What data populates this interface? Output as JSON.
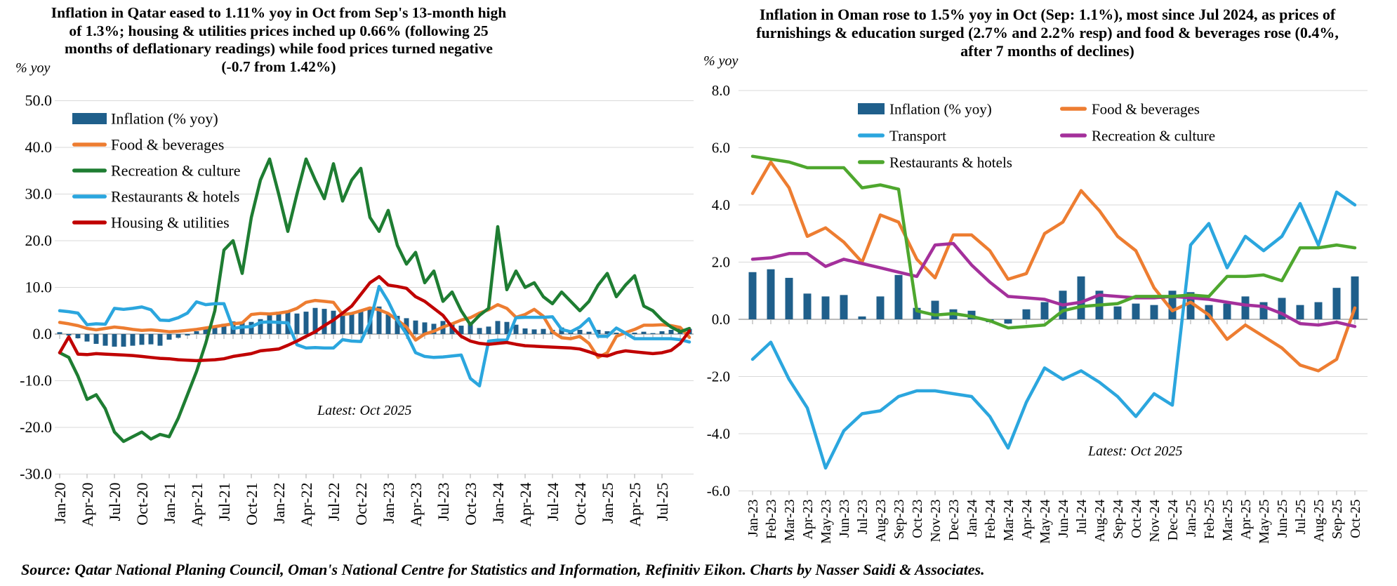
{
  "source_note": "Source: Qatar National Planing Council, Oman's National Centre for Statistics and Information, Refinitiv Eikon. Charts by Nasser Saidi & Associates.",
  "chart_data": [
    {
      "id": "qatar",
      "type": "combo_bar_line",
      "title": "Inflation in Qatar eased to 1.11% yoy in Oct from Sep's 13-month high of 1.3%; housing & utilities prices inched up 0.66% (following 25 months of deflationary readings) while food prices turned negative (-0.7 from 1.42%)",
      "ylabel": "% yoy",
      "annotation": "Latest: Oct 2025",
      "ylim": [
        -30,
        50
      ],
      "ytick_step": 10,
      "grid": true,
      "legend_position": "top-left-vertical",
      "y_tick_labels": [
        "50.0",
        "40.0",
        "30.0",
        "20.0",
        "10.0",
        "0.0",
        "-10.0",
        "-20.0",
        "-30.0"
      ],
      "n_points": 70,
      "x_range": [
        "Jan-20",
        "Oct-25"
      ],
      "x_tick_labels": [
        "Jan-20",
        "Apr-20",
        "Jul-20",
        "Oct-20",
        "Jan-21",
        "Apr-21",
        "Jul-21",
        "Oct-21",
        "Jan-22",
        "Apr-22",
        "Jul-22",
        "Oct-22",
        "Jan-23",
        "Apr-23",
        "Jul-23",
        "Oct-23",
        "Jan-24",
        "Apr-24",
        "Jul-24",
        "Oct-24",
        "Jan-25",
        "Apr-25",
        "Jul-25"
      ],
      "series": [
        {
          "name": "Inflation (% yoy)",
          "type": "bar",
          "color": "#1F5F8B",
          "values": [
            0.4,
            -0.3,
            -0.9,
            -1.6,
            -2.1,
            -2.5,
            -2.7,
            -2.7,
            -2.5,
            -2.3,
            -2.2,
            -2.5,
            -1.2,
            -0.8,
            -0.3,
            0.6,
            1.2,
            1.8,
            2.2,
            2.7,
            2.4,
            2.6,
            3.2,
            4.0,
            4.8,
            5.0,
            4.4,
            4.8,
            5.6,
            5.4,
            5.0,
            4.4,
            4.5,
            5.2,
            5.8,
            5.9,
            4.2,
            3.9,
            3.4,
            2.9,
            2.5,
            2.2,
            2.8,
            2.4,
            1.8,
            2.5,
            1.3,
            1.6,
            2.8,
            2.6,
            2.0,
            1.2,
            1.0,
            1.1,
            0.9,
            1.4,
            0.8,
            0.9,
            0.5,
            0.9,
            0.6,
            0.3,
            0.1,
            0.3,
            0.5,
            0.2,
            0.6,
            0.9,
            1.3,
            1.11
          ]
        },
        {
          "name": "Food & beverages",
          "type": "line",
          "color": "#ED7D31",
          "values": [
            2.5,
            2.2,
            1.8,
            1.2,
            0.9,
            1.2,
            1.5,
            1.3,
            1.0,
            0.8,
            0.9,
            0.7,
            0.5,
            0.6,
            0.8,
            1.0,
            1.3,
            1.6,
            1.9,
            2.2,
            2.4,
            4.2,
            4.4,
            4.3,
            4.5,
            4.8,
            5.5,
            6.8,
            7.2,
            7.0,
            6.8,
            4.2,
            4.4,
            5.0,
            5.6,
            5.2,
            4.4,
            3.0,
            1.5,
            -1.3,
            0.0,
            0.6,
            1.5,
            2.2,
            3.0,
            3.5,
            4.5,
            5.2,
            6.3,
            5.5,
            3.6,
            4.2,
            5.3,
            3.8,
            0.5,
            -0.8,
            -1.0,
            -0.5,
            -2.0,
            -5.0,
            -4.0,
            -0.5,
            0.3,
            1.0,
            1.9,
            1.9,
            2.0,
            1.8,
            1.42,
            -0.7
          ]
        },
        {
          "name": "Recreation & culture",
          "type": "line",
          "color": "#1E7D32",
          "values": [
            -4,
            -5,
            -9,
            -14,
            -13,
            -16,
            -21,
            -23,
            -22,
            -21,
            -22.5,
            -21.5,
            -22,
            -18,
            -13,
            -8,
            -2,
            5,
            18,
            20,
            13,
            25,
            33,
            37.5,
            30,
            22,
            30,
            37.5,
            33,
            29,
            36.5,
            28.5,
            33,
            35.5,
            25,
            22,
            26.5,
            19,
            15,
            17.5,
            11,
            13.5,
            7,
            9,
            5,
            2,
            4,
            5.5,
            23,
            9.5,
            13.5,
            10,
            11,
            8,
            6.5,
            9,
            7,
            5,
            7,
            10.5,
            13,
            8,
            10.5,
            12.5,
            6,
            5,
            3,
            1.5,
            0.5,
            1.2
          ]
        },
        {
          "name": "Restaurants & hotels",
          "type": "line",
          "color": "#2BA6DE",
          "values": [
            5.0,
            4.8,
            4.5,
            2.0,
            2.2,
            2.1,
            5.5,
            5.3,
            5.5,
            5.8,
            5.2,
            3.0,
            2.9,
            3.5,
            4.5,
            6.9,
            6.3,
            6.5,
            6.5,
            1.2,
            1.5,
            1.6,
            2.5,
            2.6,
            2.5,
            2.4,
            -2.3,
            -3.0,
            -2.9,
            -3.0,
            -3.0,
            -1.2,
            -1.5,
            -1.6,
            2.5,
            10.2,
            7.0,
            3.0,
            0.0,
            -4.0,
            -4.8,
            -5.0,
            -4.9,
            -4.7,
            -4.5,
            -9.5,
            -11.1,
            -1.5,
            -1.3,
            -1.3,
            3.5,
            3.6,
            3.6,
            3.6,
            3.7,
            1.0,
            0.5,
            1.5,
            3.3,
            -0.5,
            -0.5,
            1.3,
            0.2,
            -1.0,
            -1.0,
            -1.0,
            -1.0,
            -1.0,
            -1.2,
            -1.7
          ]
        },
        {
          "name": "Housing & utilities",
          "type": "line",
          "color": "#C00000",
          "values": [
            -4.0,
            -0.6,
            -4.3,
            -4.4,
            -4.2,
            -4.3,
            -4.4,
            -4.5,
            -4.6,
            -4.8,
            -5.0,
            -5.2,
            -5.3,
            -5.5,
            -5.6,
            -5.7,
            -5.6,
            -5.5,
            -5.3,
            -4.8,
            -4.5,
            -4.2,
            -3.6,
            -3.4,
            -3.2,
            -2.4,
            -1.5,
            -0.5,
            0.5,
            1.8,
            3.0,
            4.5,
            6.0,
            8.5,
            11.0,
            12.3,
            10.5,
            10.2,
            9.8,
            8.0,
            7.0,
            5.5,
            4.0,
            1.5,
            -0.5,
            -1.5,
            -2.0,
            -2.2,
            -2.0,
            -1.8,
            -2.2,
            -2.5,
            -2.6,
            -2.7,
            -2.8,
            -2.9,
            -3.0,
            -3.2,
            -3.8,
            -4.5,
            -4.7,
            -4.0,
            -3.6,
            -3.8,
            -4.0,
            -4.2,
            -4.0,
            -3.5,
            -2.0,
            0.66
          ]
        }
      ]
    },
    {
      "id": "oman",
      "type": "combo_bar_line",
      "title": "Inflation in Oman rose to 1.5% yoy in Oct (Sep: 1.1%), most since Jul 2024, as prices of furnishings & education surged (2.7% and 2.2% resp) and food & beverages rose (0.4%, after 7 months of declines)",
      "ylabel": "% yoy",
      "annotation": "Latest: Oct 2025",
      "ylim": [
        -6,
        8
      ],
      "ytick_step": 2,
      "grid": true,
      "legend_position": "top-two-columns",
      "y_tick_labels": [
        "8.0",
        "6.0",
        "4.0",
        "2.0",
        "0.0",
        "-2.0",
        "-4.0",
        "-6.0"
      ],
      "n_points": 34,
      "x_range": [
        "Jan-23",
        "Oct-25"
      ],
      "x_tick_labels": [
        "Jan-23",
        "Feb-23",
        "Mar-23",
        "Apr-23",
        "May-23",
        "Jun-23",
        "Jul-23",
        "Aug-23",
        "Sep-23",
        "Oct-23",
        "Nov-23",
        "Dec-23",
        "Jan-24",
        "Feb-24",
        "Mar-24",
        "Apr-24",
        "May-24",
        "Jun-24",
        "Jul-24",
        "Aug-24",
        "Sep-24",
        "Oct-24",
        "Nov-24",
        "Dec-24",
        "Jan-25",
        "Feb-25",
        "Mar-25",
        "Apr-25",
        "May-25",
        "Jun-25",
        "Jul-25",
        "Aug-25",
        "Sep-25",
        "Oct-25"
      ],
      "series": [
        {
          "name": "Inflation (% yoy)",
          "type": "bar",
          "color": "#1F5F8B",
          "values": [
            1.65,
            1.75,
            1.45,
            0.9,
            0.8,
            0.85,
            0.1,
            0.8,
            1.55,
            0.4,
            0.65,
            0.35,
            0.3,
            -0.1,
            -0.15,
            0.35,
            0.6,
            1.0,
            1.5,
            1.0,
            0.45,
            0.55,
            0.5,
            1.0,
            0.95,
            0.5,
            0.55,
            0.8,
            0.6,
            0.75,
            0.5,
            0.6,
            1.1,
            1.5
          ]
        },
        {
          "name": "Food & beverages",
          "type": "line",
          "color": "#ED7D31",
          "values": [
            4.4,
            5.5,
            4.6,
            2.9,
            3.2,
            2.7,
            2.0,
            3.65,
            3.4,
            2.1,
            1.45,
            2.95,
            2.95,
            2.4,
            1.4,
            1.6,
            3.0,
            3.4,
            4.5,
            3.8,
            2.9,
            2.4,
            1.1,
            0.3,
            0.6,
            0.15,
            -0.7,
            -0.2,
            -0.6,
            -1.0,
            -1.6,
            -1.8,
            -1.4,
            0.4
          ]
        },
        {
          "name": "Transport",
          "type": "line",
          "color": "#2BA6DE",
          "values": [
            -1.4,
            -0.8,
            -2.1,
            -3.1,
            -5.2,
            -3.9,
            -3.3,
            -3.2,
            -2.7,
            -2.5,
            -2.5,
            -2.6,
            -2.7,
            -3.4,
            -4.5,
            -2.9,
            -1.7,
            -2.1,
            -1.8,
            -2.2,
            -2.7,
            -3.4,
            -2.6,
            -3.0,
            2.6,
            3.35,
            1.8,
            2.9,
            2.4,
            2.9,
            4.05,
            2.6,
            4.45,
            4.0
          ]
        },
        {
          "name": "Recreation & culture",
          "type": "line",
          "color": "#A4309B",
          "values": [
            2.1,
            2.15,
            2.3,
            2.3,
            1.85,
            2.1,
            1.95,
            1.8,
            1.65,
            1.5,
            2.6,
            2.65,
            1.9,
            1.3,
            0.8,
            0.75,
            0.7,
            0.5,
            0.6,
            0.85,
            0.8,
            0.75,
            0.75,
            0.8,
            0.75,
            0.7,
            0.6,
            0.5,
            0.45,
            0.2,
            -0.15,
            -0.2,
            -0.1,
            -0.25
          ]
        },
        {
          "name": "Restaurants & hotels",
          "type": "line",
          "color": "#4EA72E",
          "values": [
            5.7,
            5.6,
            5.5,
            5.3,
            5.3,
            5.3,
            4.6,
            4.7,
            4.55,
            0.3,
            0.15,
            0.2,
            0.1,
            -0.05,
            -0.3,
            -0.25,
            -0.2,
            0.3,
            0.45,
            0.5,
            0.55,
            0.8,
            0.8,
            0.8,
            0.85,
            0.8,
            1.5,
            1.5,
            1.55,
            1.35,
            2.5,
            2.5,
            2.6,
            2.5
          ]
        }
      ]
    }
  ]
}
